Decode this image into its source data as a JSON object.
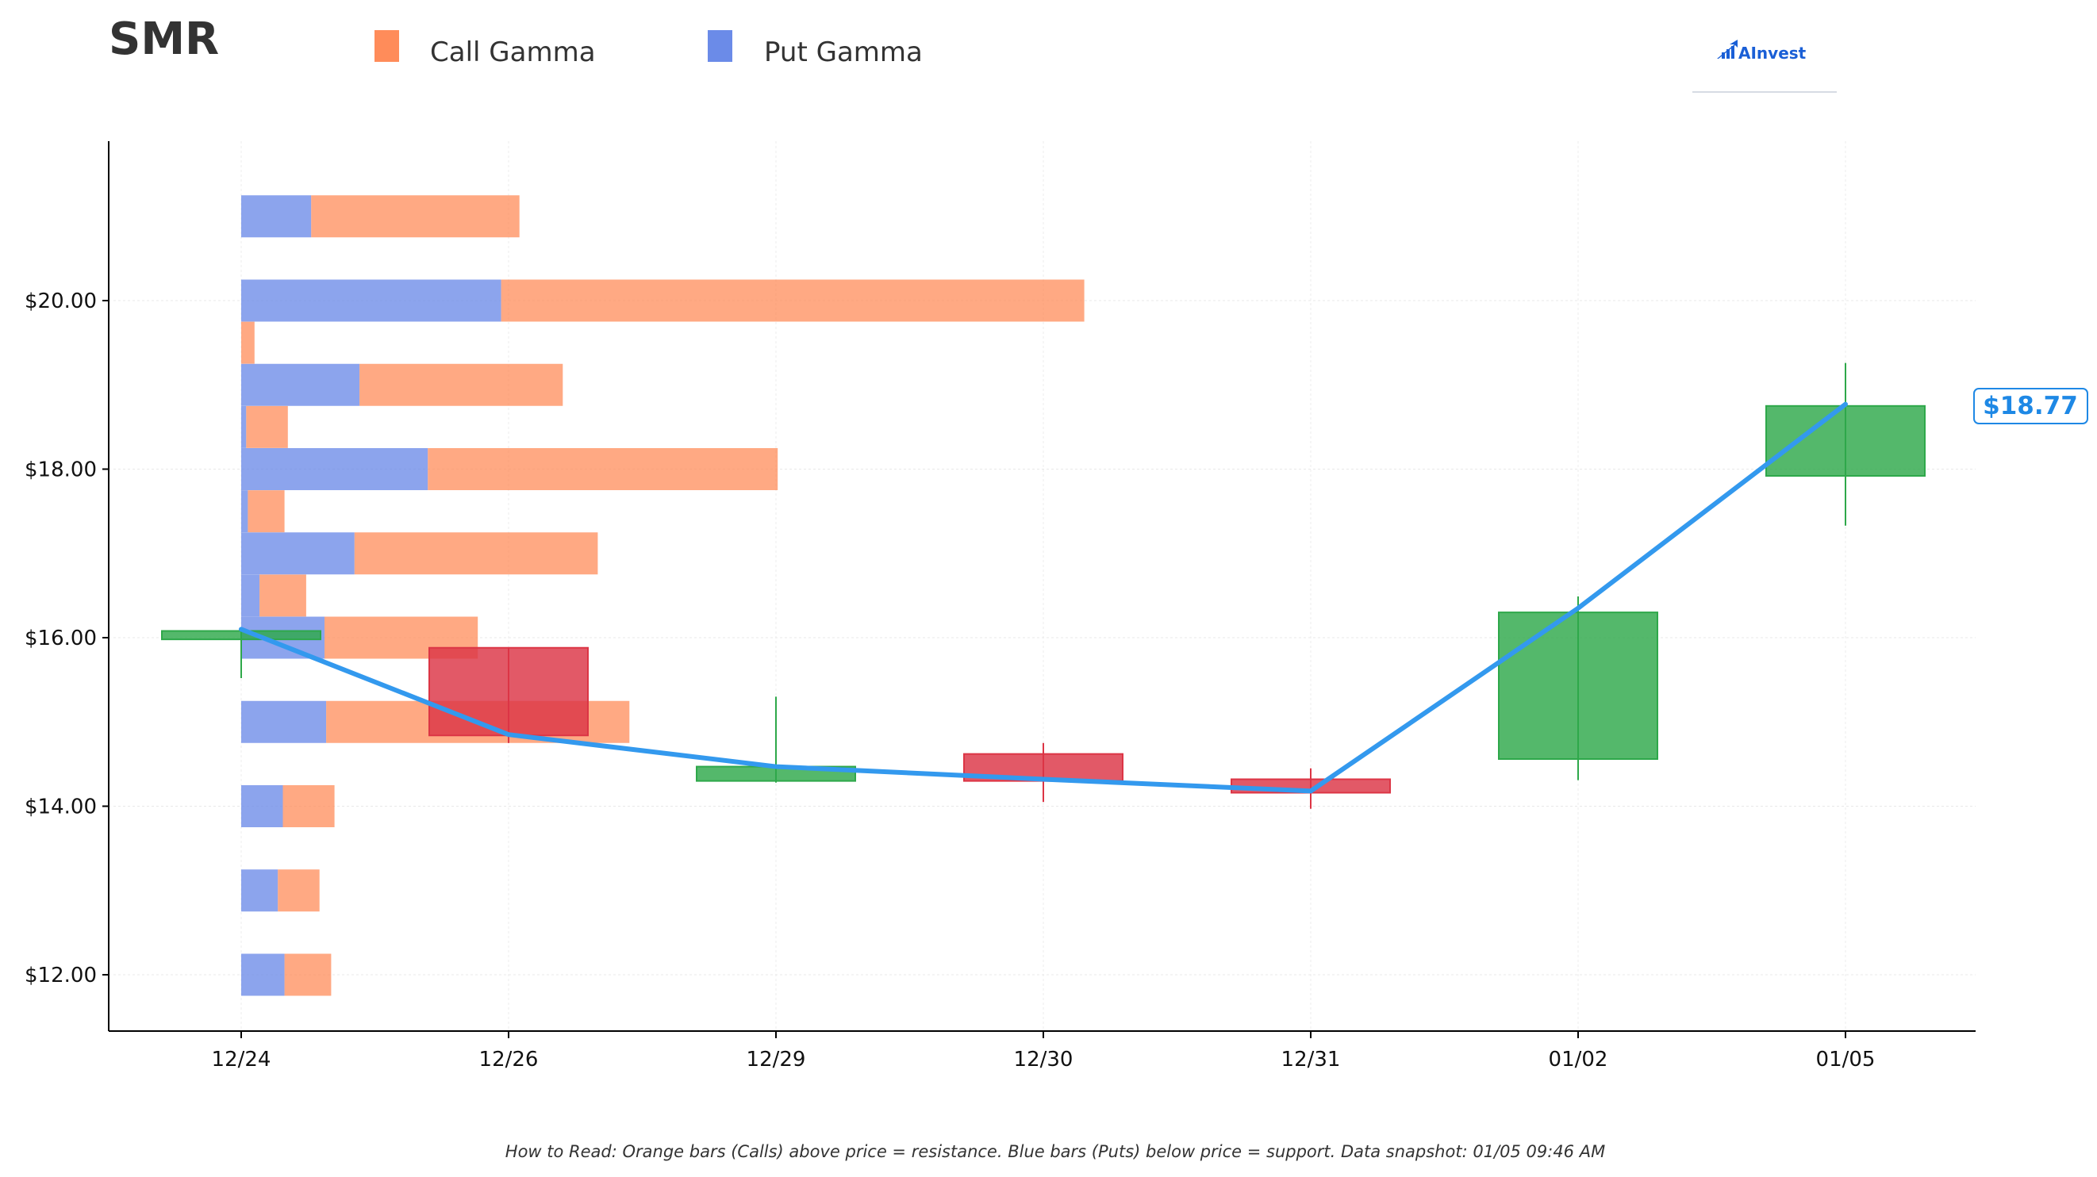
{
  "header": {
    "ticker": "SMR",
    "logo_text": "AInvest"
  },
  "legend": {
    "call_label": "Call Gamma",
    "put_label": "Put Gamma"
  },
  "footnote": "How to Read: Orange bars (Calls) above price = resistance. Blue bars (Puts) below price = support. Data snapshot: 01/05 09:46 AM",
  "current_price_label": "$18.77",
  "colors": {
    "call": "#FF8C5A",
    "put": "#6B8BE8",
    "up": "#2EA84A",
    "down": "#DC3545",
    "line": "#3399EE",
    "price_label": "#1E88E5"
  },
  "chart_data": {
    "type": "candlestick_with_gamma_bars",
    "x_categories": [
      "12/24",
      "12/26",
      "12/29",
      "12/30",
      "12/31",
      "01/02",
      "01/05"
    ],
    "y_ticks": [
      12,
      14,
      16,
      18,
      20
    ],
    "y_tick_labels": [
      "$12.00",
      "$14.00",
      "$16.00",
      "$18.00",
      "$20.00"
    ],
    "ylim": [
      11.35,
      21.95
    ],
    "grid": true,
    "legend_position": "top-left",
    "candles": [
      {
        "date": "12/24",
        "open": 15.98,
        "high": 16.1,
        "low": 15.52,
        "close": 16.08
      },
      {
        "date": "12/26",
        "open": 15.88,
        "high": 15.88,
        "low": 14.75,
        "close": 14.84
      },
      {
        "date": "12/29",
        "open": 14.3,
        "high": 15.3,
        "low": 14.28,
        "close": 14.47
      },
      {
        "date": "12/30",
        "open": 14.62,
        "high": 14.75,
        "low": 14.05,
        "close": 14.3
      },
      {
        "date": "12/31",
        "open": 14.32,
        "high": 14.45,
        "low": 13.97,
        "close": 14.16
      },
      {
        "date": "01/02",
        "open": 14.56,
        "high": 16.49,
        "low": 14.31,
        "close": 16.3
      },
      {
        "date": "01/05",
        "open": 17.92,
        "high": 19.26,
        "low": 17.33,
        "close": 18.75
      }
    ],
    "price_line": [
      16.1,
      14.85,
      14.47,
      14.32,
      14.18,
      16.35,
      18.77
    ],
    "gamma_levels": [
      {
        "strike": 12.0,
        "put": 0.26,
        "call": 0.28
      },
      {
        "strike": 13.0,
        "put": 0.22,
        "call": 0.25
      },
      {
        "strike": 14.0,
        "put": 0.25,
        "call": 0.31
      },
      {
        "strike": 15.0,
        "put": 0.51,
        "call": 1.82
      },
      {
        "strike": 16.0,
        "put": 0.5,
        "call": 0.92
      },
      {
        "strike": 16.5,
        "put": 0.11,
        "call": 0.28
      },
      {
        "strike": 17.0,
        "put": 0.68,
        "call": 1.46
      },
      {
        "strike": 17.5,
        "put": 0.04,
        "call": 0.22
      },
      {
        "strike": 18.0,
        "put": 1.12,
        "call": 2.1
      },
      {
        "strike": 18.5,
        "put": 0.03,
        "call": 0.25
      },
      {
        "strike": 19.0,
        "put": 0.71,
        "call": 1.22
      },
      {
        "strike": 19.5,
        "put": 0.0,
        "call": 0.08
      },
      {
        "strike": 20.0,
        "put": 1.56,
        "call": 3.5
      },
      {
        "strike": 21.0,
        "put": 0.42,
        "call": 1.25
      }
    ]
  }
}
